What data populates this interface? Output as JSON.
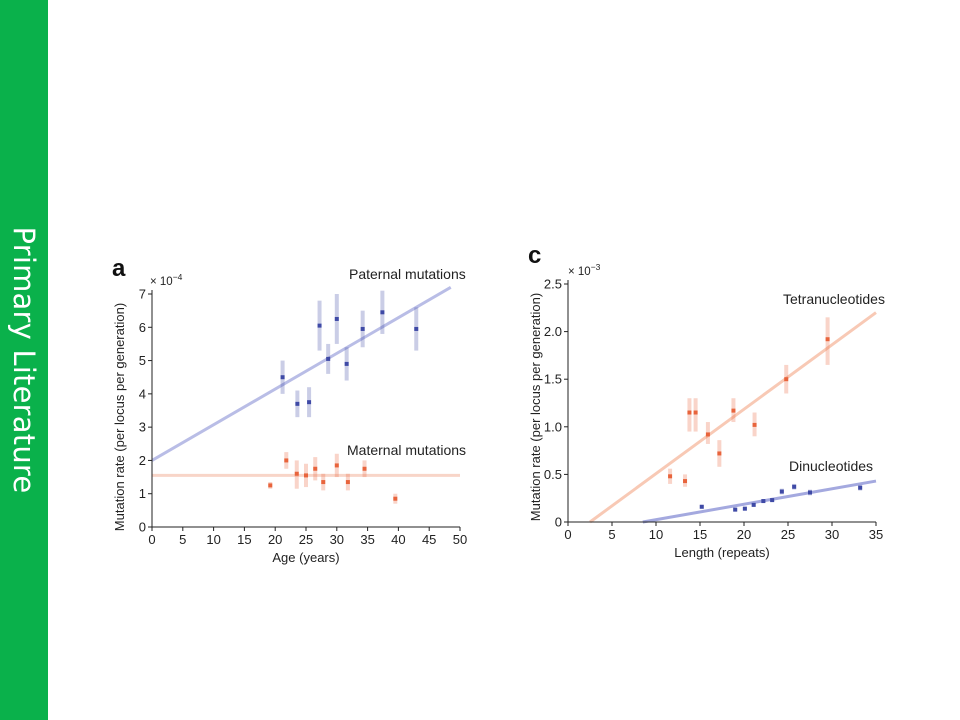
{
  "sidebar": {
    "label": "Primary Literature",
    "color": "#0ab14b"
  },
  "chart_data": [
    {
      "panel": "a",
      "type": "scatter",
      "xlabel": "Age (years)",
      "ylabel": "Mutation rate (per locus per generation)",
      "y_multiplier": "× 10",
      "y_multiplier_exp": "−4",
      "xlim": [
        0,
        50
      ],
      "ylim": [
        0,
        7
      ],
      "xticks": [
        "0",
        "5",
        "10",
        "15",
        "20",
        "25",
        "30",
        "35",
        "40",
        "45",
        "50"
      ],
      "yticks": [
        "0",
        "1",
        "2",
        "3",
        "4",
        "5",
        "6",
        "7"
      ],
      "series": [
        {
          "name": "Paternal mutations",
          "color": "#3f4aa6",
          "fit_color": "#b9bde6",
          "fit": [
            [
              0,
              2.0
            ],
            [
              48.5,
              7.2
            ]
          ],
          "points": [
            {
              "x": 21.2,
              "y": 4.5,
              "lo": 4.0,
              "hi": 5.0
            },
            {
              "x": 23.6,
              "y": 3.7,
              "lo": 3.3,
              "hi": 4.1
            },
            {
              "x": 25.5,
              "y": 3.75,
              "lo": 3.3,
              "hi": 4.2
            },
            {
              "x": 27.2,
              "y": 6.05,
              "lo": 5.3,
              "hi": 6.8
            },
            {
              "x": 28.6,
              "y": 5.05,
              "lo": 4.6,
              "hi": 5.5
            },
            {
              "x": 30.0,
              "y": 6.25,
              "lo": 5.5,
              "hi": 7.0
            },
            {
              "x": 31.6,
              "y": 4.9,
              "lo": 4.4,
              "hi": 5.4
            },
            {
              "x": 34.2,
              "y": 5.95,
              "lo": 5.4,
              "hi": 6.5
            },
            {
              "x": 37.4,
              "y": 6.45,
              "lo": 5.8,
              "hi": 7.1
            },
            {
              "x": 42.9,
              "y": 5.95,
              "lo": 5.3,
              "hi": 6.6
            }
          ]
        },
        {
          "name": "Maternal mutations",
          "color": "#e8643c",
          "fit_color": "#f8d5c8",
          "fit": [
            [
              0,
              1.55
            ],
            [
              50,
              1.55
            ]
          ],
          "points": [
            {
              "x": 19.2,
              "y": 1.25,
              "lo": 1.15,
              "hi": 1.35
            },
            {
              "x": 21.8,
              "y": 2.0,
              "lo": 1.75,
              "hi": 2.25
            },
            {
              "x": 23.5,
              "y": 1.6,
              "lo": 1.15,
              "hi": 2.0
            },
            {
              "x": 25.0,
              "y": 1.55,
              "lo": 1.2,
              "hi": 1.9
            },
            {
              "x": 26.5,
              "y": 1.75,
              "lo": 1.4,
              "hi": 2.1
            },
            {
              "x": 27.8,
              "y": 1.35,
              "lo": 1.1,
              "hi": 1.6
            },
            {
              "x": 30.0,
              "y": 1.85,
              "lo": 1.5,
              "hi": 2.2
            },
            {
              "x": 31.8,
              "y": 1.35,
              "lo": 1.1,
              "hi": 1.6
            },
            {
              "x": 34.5,
              "y": 1.75,
              "lo": 1.5,
              "hi": 2.0
            },
            {
              "x": 39.5,
              "y": 0.85,
              "lo": 0.7,
              "hi": 1.0
            }
          ]
        }
      ]
    },
    {
      "panel": "c",
      "type": "scatter",
      "xlabel": "Length (repeats)",
      "ylabel": "Mutation rate (per locus per generation)",
      "y_multiplier": "× 10",
      "y_multiplier_exp": "−3",
      "xlim": [
        0,
        35
      ],
      "ylim": [
        0,
        2.5
      ],
      "xticks": [
        "0",
        "5",
        "10",
        "15",
        "20",
        "25",
        "30",
        "35"
      ],
      "yticks": [
        "0",
        "0.5",
        "1.0",
        "1.5",
        "2.0",
        "2.5"
      ],
      "series": [
        {
          "name": "Tetranucleotides",
          "color": "#e8643c",
          "fit_color": "#f8c9b5",
          "fit": [
            [
              2.5,
              0.0
            ],
            [
              35,
              2.2
            ]
          ],
          "points": [
            {
              "x": 11.6,
              "y": 0.48,
              "lo": 0.4,
              "hi": 0.56
            },
            {
              "x": 13.3,
              "y": 0.43,
              "lo": 0.37,
              "hi": 0.5
            },
            {
              "x": 13.8,
              "y": 1.15,
              "lo": 0.95,
              "hi": 1.3
            },
            {
              "x": 14.5,
              "y": 1.15,
              "lo": 0.95,
              "hi": 1.3
            },
            {
              "x": 15.9,
              "y": 0.92,
              "lo": 0.82,
              "hi": 1.05
            },
            {
              "x": 17.2,
              "y": 0.72,
              "lo": 0.58,
              "hi": 0.86
            },
            {
              "x": 18.8,
              "y": 1.17,
              "lo": 1.05,
              "hi": 1.3
            },
            {
              "x": 21.2,
              "y": 1.02,
              "lo": 0.9,
              "hi": 1.15
            },
            {
              "x": 24.8,
              "y": 1.5,
              "lo": 1.35,
              "hi": 1.65
            },
            {
              "x": 29.5,
              "y": 1.92,
              "lo": 1.65,
              "hi": 2.15
            }
          ]
        },
        {
          "name": "Dinucleotides",
          "color": "#3f4aa6",
          "fit_color": "#a4a9df",
          "fit": [
            [
              8.5,
              0.0
            ],
            [
              35,
              0.43
            ]
          ],
          "points": [
            {
              "x": 15.2,
              "y": 0.16,
              "lo": 0.14,
              "hi": 0.18
            },
            {
              "x": 19.0,
              "y": 0.13,
              "lo": 0.11,
              "hi": 0.15
            },
            {
              "x": 20.1,
              "y": 0.14,
              "lo": 0.12,
              "hi": 0.16
            },
            {
              "x": 21.1,
              "y": 0.18,
              "lo": 0.16,
              "hi": 0.2
            },
            {
              "x": 22.2,
              "y": 0.22,
              "lo": 0.2,
              "hi": 0.24
            },
            {
              "x": 23.2,
              "y": 0.23,
              "lo": 0.21,
              "hi": 0.25
            },
            {
              "x": 24.3,
              "y": 0.32,
              "lo": 0.29,
              "hi": 0.35
            },
            {
              "x": 25.7,
              "y": 0.37,
              "lo": 0.34,
              "hi": 0.4
            },
            {
              "x": 27.5,
              "y": 0.31,
              "lo": 0.28,
              "hi": 0.34
            },
            {
              "x": 33.2,
              "y": 0.36,
              "lo": 0.33,
              "hi": 0.39
            }
          ]
        }
      ]
    }
  ]
}
